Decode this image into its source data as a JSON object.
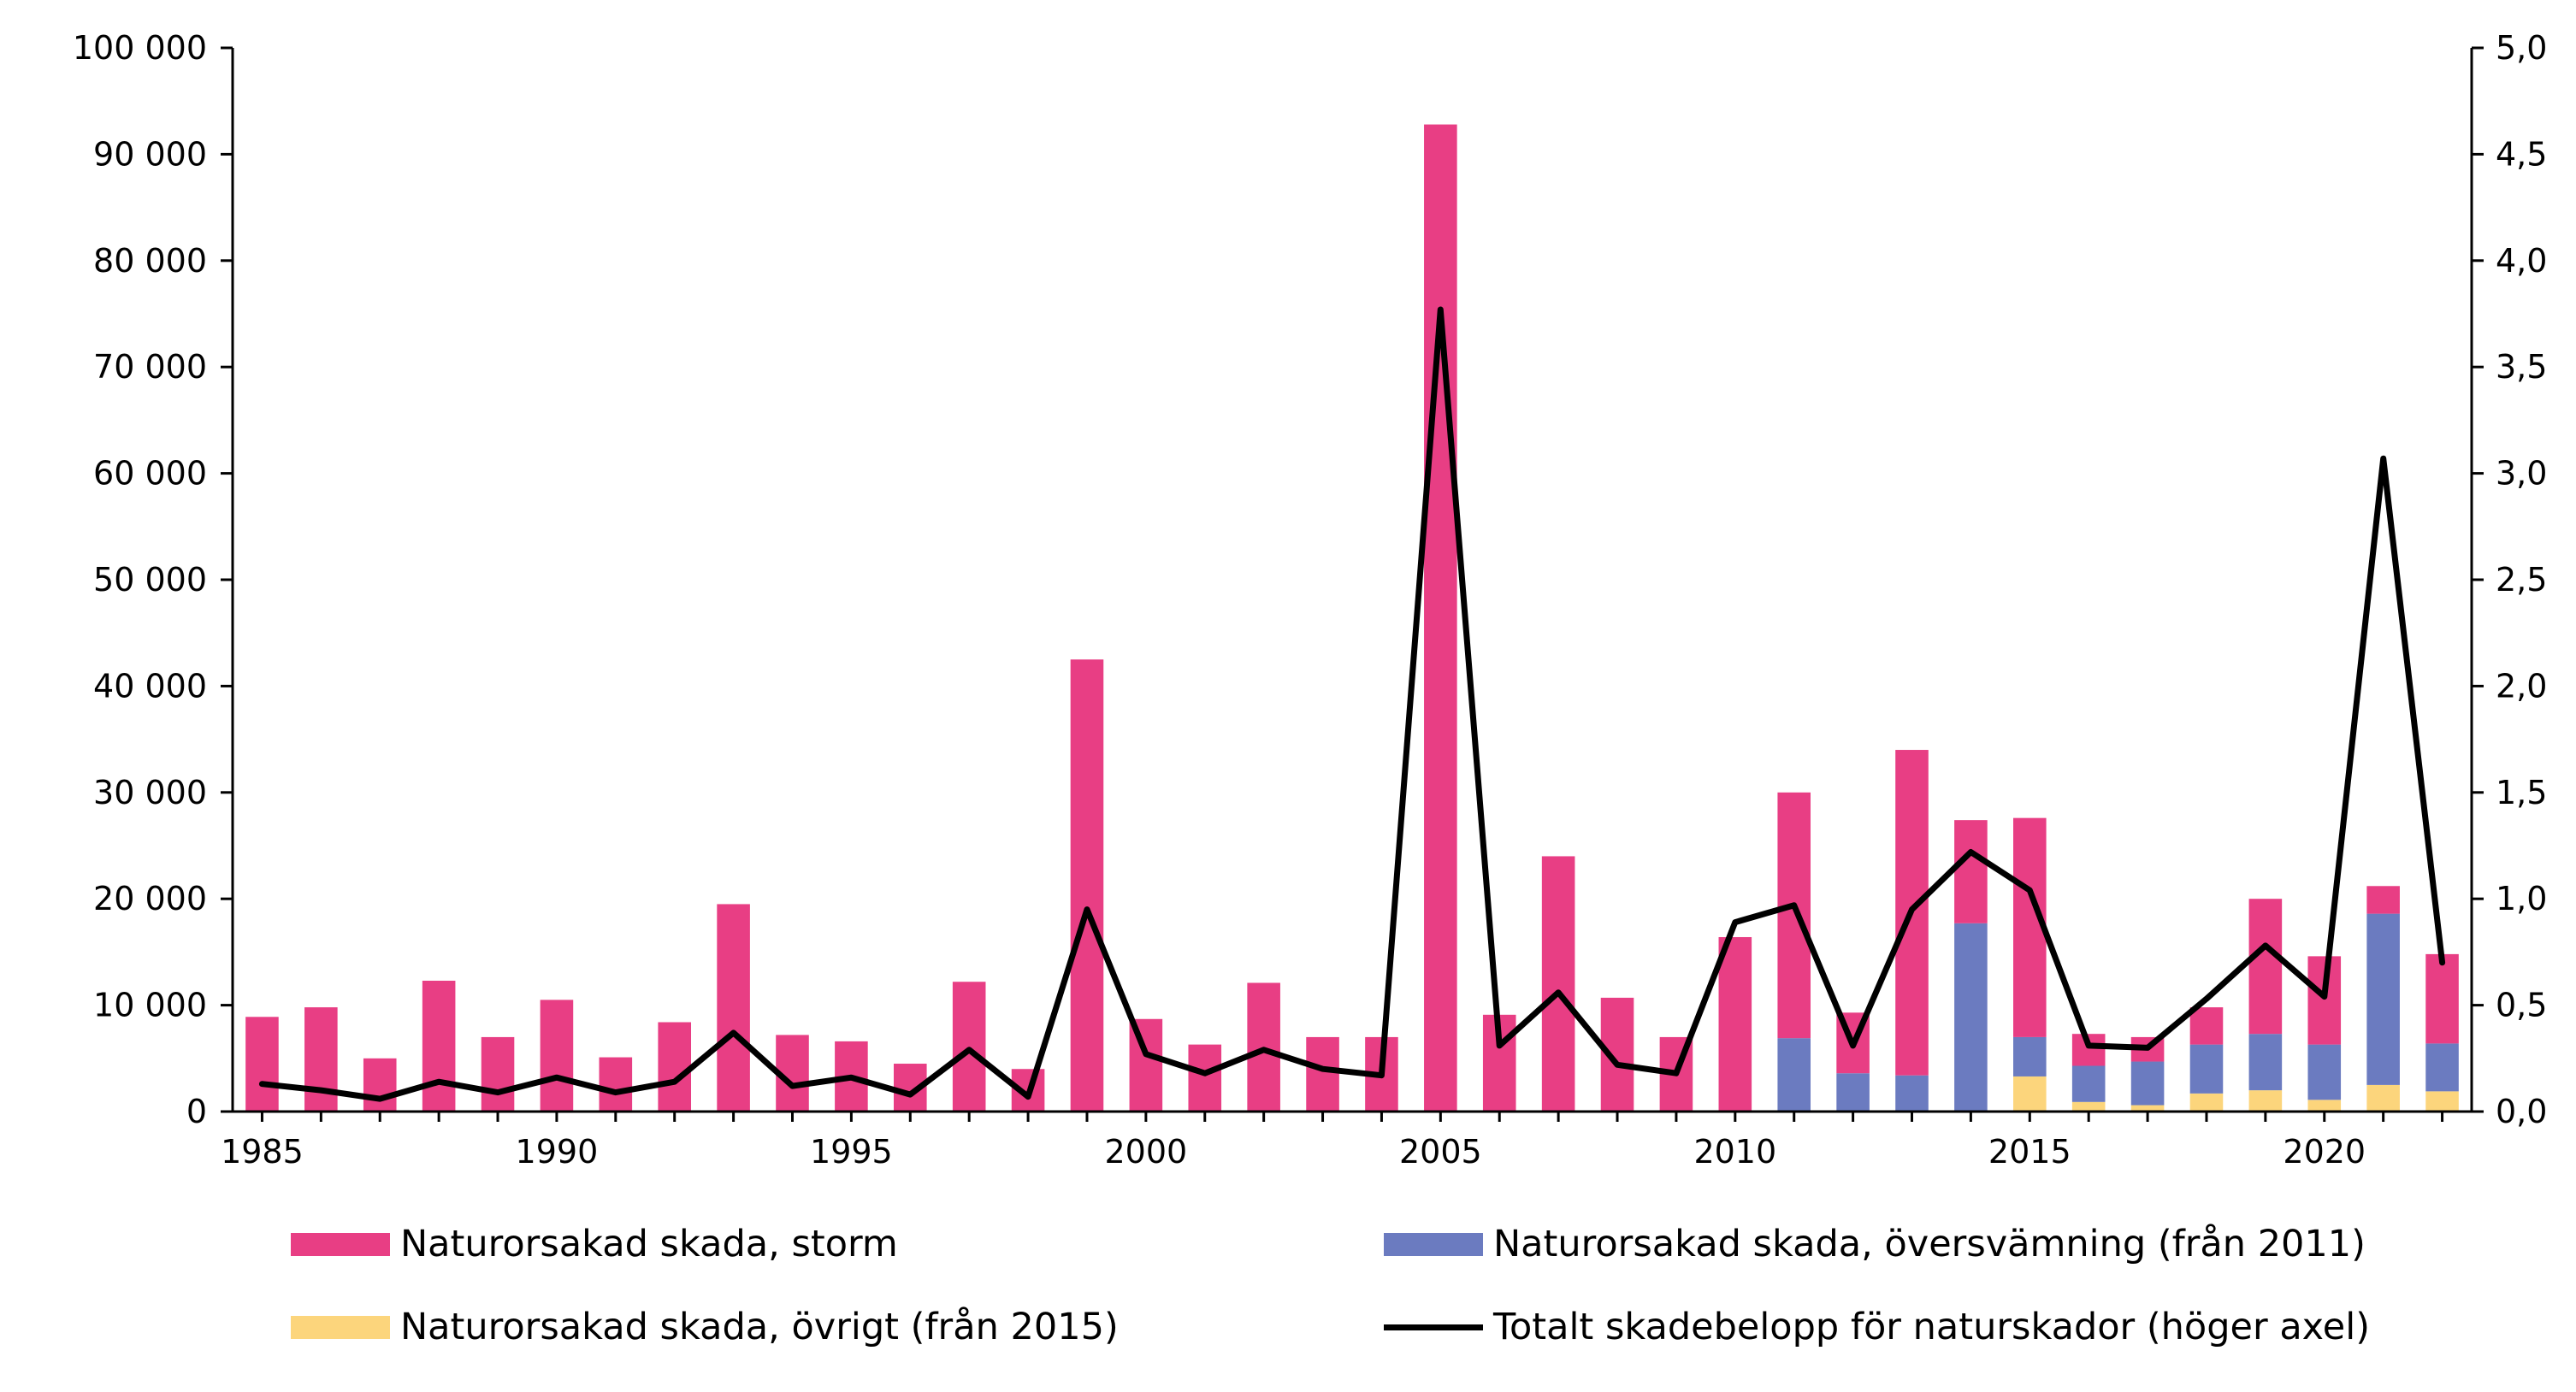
{
  "chart_data": {
    "type": "bar",
    "stacked": true,
    "title": "",
    "xlabel": "",
    "ylabel": "",
    "y2label": "",
    "ylim": [
      0,
      100000
    ],
    "y2lim": [
      0,
      5.0
    ],
    "grid": false,
    "legend_position": "bottom",
    "x": [
      1985,
      1986,
      1987,
      1988,
      1989,
      1990,
      1991,
      1992,
      1993,
      1994,
      1995,
      1996,
      1997,
      1998,
      1999,
      2000,
      2001,
      2002,
      2003,
      2004,
      2005,
      2006,
      2007,
      2008,
      2009,
      2010,
      2011,
      2012,
      2013,
      2014,
      2015,
      2016,
      2017,
      2018,
      2019,
      2020,
      2021,
      2022
    ],
    "x_tick_labels": [
      "1985",
      "1990",
      "1995",
      "2000",
      "2005",
      "2010",
      "2015",
      "2020"
    ],
    "y_tick_labels": [
      "0",
      "10 000",
      "20 000",
      "30 000",
      "40 000",
      "50 000",
      "60 000",
      "70 000",
      "80 000",
      "90 000",
      "100 000"
    ],
    "y2_tick_labels": [
      "0,0",
      "0,5",
      "1,0",
      "1,5",
      "2,0",
      "2,5",
      "3,0",
      "3,5",
      "4,0",
      "4,5",
      "5,0"
    ],
    "series": [
      {
        "name": "Naturorsakad skada, storm",
        "kind": "bar",
        "color": "#E83E84",
        "values": [
          8900,
          9800,
          5000,
          12300,
          7000,
          10500,
          5100,
          8400,
          19500,
          7200,
          6600,
          4500,
          12200,
          4000,
          42500,
          8700,
          6300,
          12100,
          7000,
          7000,
          92800,
          9100,
          24000,
          10700,
          7000,
          16400,
          23100,
          5700,
          30600,
          9700,
          20600,
          3000,
          2300,
          3500,
          12700,
          8300,
          2600,
          8400
        ]
      },
      {
        "name": "Naturorsakad skada, översvämning (från 2011)",
        "kind": "bar",
        "color": "#6B7BC0",
        "values": [
          0,
          0,
          0,
          0,
          0,
          0,
          0,
          0,
          0,
          0,
          0,
          0,
          0,
          0,
          0,
          0,
          0,
          0,
          0,
          0,
          0,
          0,
          0,
          0,
          0,
          0,
          6900,
          3600,
          3400,
          17700,
          3700,
          3400,
          4100,
          4600,
          5300,
          5200,
          16100,
          4500
        ]
      },
      {
        "name": "Naturorsakad skada, övrigt (från 2015)",
        "kind": "bar",
        "color": "#FCD57C",
        "values": [
          0,
          0,
          0,
          0,
          0,
          0,
          0,
          0,
          0,
          0,
          0,
          0,
          0,
          0,
          0,
          0,
          0,
          0,
          0,
          0,
          0,
          0,
          0,
          0,
          0,
          0,
          0,
          0,
          0,
          0,
          3300,
          900,
          600,
          1700,
          2000,
          1100,
          2500,
          1900
        ]
      },
      {
        "name": "Totalt skadebelopp för naturskador (höger axel)",
        "kind": "line",
        "axis": "right",
        "color": "#000000",
        "values": [
          0.13,
          0.1,
          0.06,
          0.14,
          0.09,
          0.16,
          0.09,
          0.14,
          0.37,
          0.12,
          0.16,
          0.08,
          0.29,
          0.07,
          0.95,
          0.27,
          0.18,
          0.29,
          0.2,
          0.17,
          3.77,
          0.31,
          0.56,
          0.22,
          0.18,
          0.89,
          0.97,
          0.31,
          0.95,
          1.22,
          1.04,
          0.31,
          0.3,
          0.53,
          0.78,
          0.54,
          3.07,
          0.7
        ]
      }
    ]
  }
}
